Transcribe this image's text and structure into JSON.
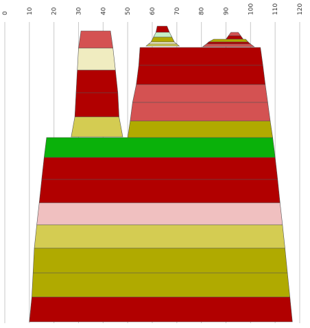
{
  "chart_data": {
    "type": "stacked-trapezoid-diagram",
    "x_axis": {
      "ticks": [
        0,
        10,
        20,
        30,
        40,
        50,
        60,
        70,
        80,
        90,
        100,
        110,
        120
      ],
      "range": [
        0,
        120
      ],
      "label_rotation": "vertical",
      "grid": true,
      "position": "top"
    },
    "colors": {
      "dark_red": "#b10000",
      "red": "#d45252",
      "pink": "#f0c0c0",
      "light_yellow": "#f0ecc0",
      "yellow_green": "#d4cc52",
      "olive": "#b0aa00",
      "green": "#0ab10a",
      "pale_green": "#c6f0c6"
    },
    "shapes": [
      {
        "name": "base-stack",
        "bands": [
          {
            "color": "#0ab10a",
            "top": [
              17,
              109
            ],
            "bottom": [
              16,
              110
            ]
          },
          {
            "color": "#b10000",
            "top": [
              16,
              110
            ],
            "bottom": [
              15,
              111
            ]
          },
          {
            "color": "#b10000",
            "top": [
              15,
              111
            ],
            "bottom": [
              14,
              112
            ]
          },
          {
            "color": "#f0c0c0",
            "top": [
              14,
              112
            ],
            "bottom": [
              13,
              113
            ]
          },
          {
            "color": "#d4cc52",
            "top": [
              13,
              113
            ],
            "bottom": [
              12,
              114
            ]
          },
          {
            "color": "#b0aa00",
            "top": [
              12,
              114
            ],
            "bottom": [
              11.5,
              115
            ]
          },
          {
            "color": "#b0aa00",
            "top": [
              11.5,
              115
            ],
            "bottom": [
              11,
              116
            ]
          },
          {
            "color": "#b10000",
            "top": [
              11,
              116
            ],
            "bottom": [
              10,
              117
            ]
          }
        ]
      },
      {
        "name": "left-tower",
        "bands": [
          {
            "color": "#d45252",
            "top": [
              31,
              43
            ],
            "bottom": [
              30,
              44
            ]
          },
          {
            "color": "#f0ecc0",
            "top": [
              30,
              44
            ],
            "bottom": [
              29.5,
              45
            ]
          },
          {
            "color": "#b10000",
            "top": [
              29.5,
              45
            ],
            "bottom": [
              29,
              46
            ]
          },
          {
            "color": "#b10000",
            "top": [
              29,
              46
            ],
            "bottom": [
              28.5,
              46.5
            ]
          },
          {
            "color": "#d4cc52",
            "top": [
              28.5,
              46.5
            ],
            "bottom": [
              27,
              48
            ]
          }
        ]
      },
      {
        "name": "right-tower",
        "bands": [
          {
            "color": "#b10000",
            "top": [
              55,
              104
            ],
            "bottom": [
              54.5,
              105
            ]
          },
          {
            "color": "#b10000",
            "top": [
              54.5,
              105
            ],
            "bottom": [
              53.5,
              106
            ]
          },
          {
            "color": "#d45252",
            "top": [
              53.5,
              106
            ],
            "bottom": [
              52,
              107
            ]
          },
          {
            "color": "#d45252",
            "top": [
              52,
              107
            ],
            "bottom": [
              51,
              108
            ]
          },
          {
            "color": "#b0aa00",
            "top": [
              51,
              108
            ],
            "bottom": [
              50,
              109
            ]
          }
        ]
      },
      {
        "name": "left-peak",
        "bands": [
          {
            "color": "#b10000",
            "top": [
              62,
              66
            ],
            "bottom": [
              61.5,
              67
            ]
          },
          {
            "color": "#c6f0c6",
            "top": [
              61.5,
              67
            ],
            "bottom": [
              60.5,
              68
            ]
          },
          {
            "color": "#b0aa00",
            "top": [
              60.5,
              68
            ],
            "bottom": [
              59.5,
              69
            ]
          },
          {
            "color": "#f0ecc0",
            "top": [
              59.5,
              69
            ],
            "bottom": [
              58.5,
              70
            ]
          },
          {
            "color": "#d4cc52",
            "top": [
              58.5,
              70
            ],
            "bottom": [
              57.5,
              71
            ]
          }
        ]
      },
      {
        "name": "right-peak",
        "bands": [
          {
            "color": "#d45252",
            "top": [
              92,
              95
            ],
            "bottom": [
              91,
              96
            ]
          },
          {
            "color": "#b10000",
            "top": [
              91,
              96
            ],
            "bottom": [
              90,
              97
            ]
          },
          {
            "color": "#b0aa00",
            "top": [
              85,
              98
            ],
            "bottom": [
              83,
              99
            ]
          },
          {
            "color": "#b10000",
            "top": [
              83,
              99
            ],
            "bottom": [
              82,
              100
            ]
          },
          {
            "color": "#d45252",
            "top": [
              82,
              100
            ],
            "bottom": [
              80.5,
              101.5
            ]
          }
        ]
      }
    ]
  }
}
